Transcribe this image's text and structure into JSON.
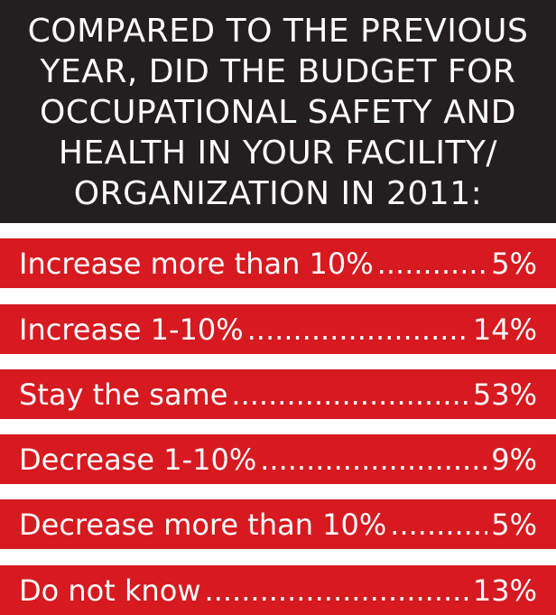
{
  "chart_data": {
    "type": "table",
    "title": "COMPARED TO THE PREVIOUS YEAR, DID THE BUDGET FOR OCCUPATIONAL SAFETY AND HEALTH IN YOUR FACILITY/ ORGANIZATION IN 2011:",
    "title_lines": [
      "COMPARED TO THE PREVIOUS",
      "YEAR, DID THE BUDGET FOR",
      "OCCUPATIONAL SAFETY AND",
      "HEALTH IN YOUR FACILITY/",
      "ORGANIZATION IN 2011:"
    ],
    "categories": [
      "Increase more than 10%",
      "Increase 1-10%",
      "Stay the same",
      "Decrease 1-10%",
      "Decrease more than 10%",
      "Do not know"
    ],
    "values": [
      5,
      14,
      53,
      9,
      5,
      13
    ],
    "value_labels": [
      "5%",
      "14%",
      "53%",
      "9%",
      "5%",
      "13%"
    ],
    "colors": {
      "header": "#231f20",
      "bar": "#d71920",
      "text": "#ffffff"
    }
  }
}
